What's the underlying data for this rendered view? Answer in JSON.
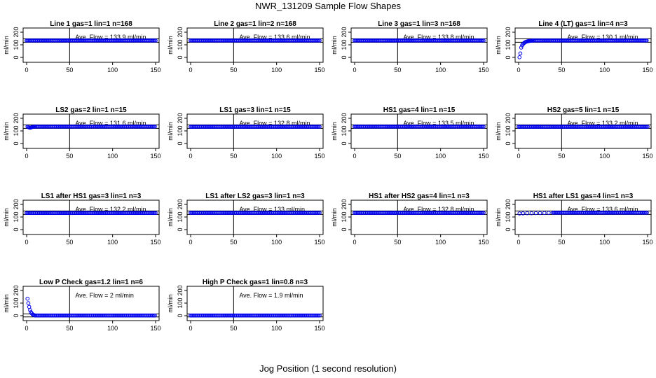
{
  "page": {
    "title": "NWR_131209  Sample Flow Shapes",
    "xlabel": "Jog Position (1 second resolution)"
  },
  "colors": {
    "points": "#0000ee",
    "axes": "#000000"
  },
  "chart_data": [
    {
      "type": "scatter",
      "title": "Line 1 gas=1 lin=1 n=168",
      "ylabel": "ml/min",
      "annotation": "Ave. Flow =  133.9  ml/min",
      "xlim": [
        0,
        150
      ],
      "ylim": [
        0,
        200
      ],
      "xticks": [
        0,
        50,
        100,
        150
      ],
      "yticks": [
        0,
        100,
        200
      ],
      "ref_lines": {
        "v": 50,
        "h": [
          120,
          148
        ]
      },
      "flow_start": 0,
      "series": [
        {
          "x": [
            0,
            150
          ],
          "y": [
            134,
            134
          ]
        }
      ]
    },
    {
      "type": "scatter",
      "title": "Line 2 gas=1 lin=2 n=168",
      "ylabel": "ml/min",
      "annotation": "Ave. Flow =  133.6  ml/min",
      "xlim": [
        0,
        150
      ],
      "ylim": [
        0,
        200
      ],
      "xticks": [
        0,
        50,
        100,
        150
      ],
      "yticks": [
        0,
        100,
        200
      ],
      "ref_lines": {
        "v": 50,
        "h": [
          120,
          148
        ]
      },
      "flow_start": 0,
      "series": [
        {
          "x": [
            0,
            150
          ],
          "y": [
            134,
            134
          ]
        }
      ]
    },
    {
      "type": "scatter",
      "title": "Line 3 gas=1 lin=3 n=168",
      "ylabel": "ml/min",
      "annotation": "Ave. Flow =  133.8  ml/min",
      "xlim": [
        0,
        150
      ],
      "ylim": [
        0,
        200
      ],
      "xticks": [
        0,
        50,
        100,
        150
      ],
      "yticks": [
        0,
        100,
        200
      ],
      "ref_lines": {
        "v": 50,
        "h": [
          120,
          148
        ]
      },
      "flow_start": 0,
      "series": [
        {
          "x": [
            0,
            150
          ],
          "y": [
            134,
            134
          ]
        }
      ]
    },
    {
      "type": "scatter",
      "title": "Line 4 (LT) gas=1 lin=4 n=3",
      "ylabel": "ml/min",
      "annotation": "Ave. Flow =  130.1  ml/min",
      "xlim": [
        0,
        150
      ],
      "ylim": [
        0,
        200
      ],
      "xticks": [
        0,
        50,
        100,
        150
      ],
      "yticks": [
        0,
        100,
        200
      ],
      "ref_lines": {
        "v": 50,
        "h": [
          120,
          148
        ]
      },
      "flow_start": 17,
      "series": [
        {
          "x": [
            1,
            2,
            3,
            4,
            5,
            6,
            7,
            8,
            9,
            10,
            11,
            12,
            13,
            14,
            15,
            16,
            17,
            150
          ],
          "y": [
            1,
            32,
            78,
            95,
            105,
            112,
            118,
            122,
            125,
            127,
            129,
            130,
            131,
            132,
            133,
            133,
            134,
            134
          ]
        }
      ]
    },
    {
      "type": "scatter",
      "title": "LS2 gas=2 lin=1 n=15",
      "ylabel": "ml/min",
      "annotation": "Ave. Flow =  131.6  ml/min",
      "xlim": [
        0,
        150
      ],
      "ylim": [
        0,
        200
      ],
      "xticks": [
        0,
        50,
        100,
        150
      ],
      "yticks": [
        0,
        100,
        200
      ],
      "ref_lines": {
        "v": 50,
        "h": [
          120,
          148
        ]
      },
      "flow_start": 10,
      "series": [
        {
          "x": [
            1,
            2,
            3,
            4,
            5,
            6,
            7,
            8,
            9,
            10,
            150
          ],
          "y": [
            134,
            130,
            127,
            125,
            127,
            130,
            132,
            133,
            134,
            134,
            134
          ]
        }
      ]
    },
    {
      "type": "scatter",
      "title": "LS1 gas=3 lin=1 n=15",
      "ylabel": "ml/min",
      "annotation": "Ave. Flow =  132.8  ml/min",
      "xlim": [
        0,
        150
      ],
      "ylim": [
        0,
        200
      ],
      "xticks": [
        0,
        50,
        100,
        150
      ],
      "yticks": [
        0,
        100,
        200
      ],
      "ref_lines": {
        "v": 50,
        "h": [
          120,
          148
        ]
      },
      "flow_start": 0,
      "series": [
        {
          "x": [
            0,
            150
          ],
          "y": [
            133,
            133
          ]
        }
      ]
    },
    {
      "type": "scatter",
      "title": "HS1 gas=4 lin=1 n=15",
      "ylabel": "ml/min",
      "annotation": "Ave. Flow =  133.5  ml/min",
      "xlim": [
        0,
        150
      ],
      "ylim": [
        0,
        200
      ],
      "xticks": [
        0,
        50,
        100,
        150
      ],
      "yticks": [
        0,
        100,
        200
      ],
      "ref_lines": {
        "v": 50,
        "h": [
          120,
          148
        ]
      },
      "flow_start": 0,
      "series": [
        {
          "x": [
            0,
            150
          ],
          "y": [
            134,
            134
          ]
        }
      ]
    },
    {
      "type": "scatter",
      "title": "HS2 gas=5 lin=1 n=15",
      "ylabel": "ml/min",
      "annotation": "Ave. Flow =  133.2  ml/min",
      "xlim": [
        0,
        150
      ],
      "ylim": [
        0,
        200
      ],
      "xticks": [
        0,
        50,
        100,
        150
      ],
      "yticks": [
        0,
        100,
        200
      ],
      "ref_lines": {
        "v": 50,
        "h": [
          120,
          148
        ]
      },
      "flow_start": 0,
      "series": [
        {
          "x": [
            0,
            150
          ],
          "y": [
            133,
            133
          ]
        }
      ]
    },
    {
      "type": "scatter",
      "title": "LS1 after HS1 gas=3 lin=1 n=3",
      "ylabel": "ml/min",
      "annotation": "Ave. Flow =  132.2  ml/min",
      "xlim": [
        0,
        150
      ],
      "ylim": [
        0,
        200
      ],
      "xticks": [
        0,
        50,
        100,
        150
      ],
      "yticks": [
        0,
        100,
        200
      ],
      "ref_lines": {
        "v": 50,
        "h": [
          120,
          148
        ]
      },
      "flow_start": 0,
      "series": [
        {
          "x": [
            0,
            150
          ],
          "y": [
            132,
            132
          ]
        }
      ]
    },
    {
      "type": "scatter",
      "title": "LS1 after LS2 gas=3 lin=1 n=3",
      "ylabel": "ml/min",
      "annotation": "Ave. Flow =  133  ml/min",
      "xlim": [
        0,
        150
      ],
      "ylim": [
        0,
        200
      ],
      "xticks": [
        0,
        50,
        100,
        150
      ],
      "yticks": [
        0,
        100,
        200
      ],
      "ref_lines": {
        "v": 50,
        "h": [
          120,
          148
        ]
      },
      "flow_start": 0,
      "series": [
        {
          "x": [
            0,
            150
          ],
          "y": [
            133,
            133
          ]
        }
      ]
    },
    {
      "type": "scatter",
      "title": "HS1 after HS2 gas=4 lin=1 n=3",
      "ylabel": "ml/min",
      "annotation": "Ave. Flow =  132.8  ml/min",
      "xlim": [
        0,
        150
      ],
      "ylim": [
        0,
        200
      ],
      "xticks": [
        0,
        50,
        100,
        150
      ],
      "yticks": [
        0,
        100,
        200
      ],
      "ref_lines": {
        "v": 50,
        "h": [
          120,
          148
        ]
      },
      "flow_start": 0,
      "series": [
        {
          "x": [
            0,
            150
          ],
          "y": [
            133,
            133
          ]
        }
      ]
    },
    {
      "type": "scatter",
      "title": "HS1 after LS1 gas=4 lin=1 n=3",
      "ylabel": "ml/min",
      "annotation": "Ave. Flow =  133.6  ml/min",
      "xlim": [
        0,
        150
      ],
      "ylim": [
        0,
        200
      ],
      "xticks": [
        0,
        50,
        100,
        150
      ],
      "yticks": [
        0,
        100,
        200
      ],
      "ref_lines": {
        "v": 50,
        "h": [
          120,
          148
        ]
      },
      "flow_start": 40,
      "series": [
        {
          "x": [
            1,
            5,
            10,
            15,
            20,
            25,
            30,
            35,
            40,
            150
          ],
          "y": [
            128,
            129,
            130,
            130,
            131,
            131,
            132,
            133,
            134,
            134
          ]
        }
      ]
    },
    {
      "type": "scatter",
      "title": "Low P Check gas=1.2 lin=1 n=6",
      "ylabel": "ml/min",
      "annotation": "Ave. Flow =  2  ml/min",
      "xlim": [
        0,
        150
      ],
      "ylim": [
        0,
        200
      ],
      "xticks": [
        0,
        50,
        100,
        150
      ],
      "yticks": [
        0,
        100,
        200
      ],
      "ref_lines": {
        "v": 50,
        "h": [
          -10,
          14
        ]
      },
      "flow_start": 10,
      "series": [
        {
          "x": [
            1,
            2,
            3,
            4,
            5,
            6,
            7,
            8,
            9,
            10,
            150
          ],
          "y": [
            135,
            100,
            70,
            45,
            28,
            18,
            10,
            6,
            4,
            2,
            2
          ]
        }
      ]
    },
    {
      "type": "scatter",
      "title": "High P Check gas=1 lin=0.8 n=3",
      "ylabel": "ml/min",
      "annotation": "Ave. Flow =  1.9  ml/min",
      "xlim": [
        0,
        150
      ],
      "ylim": [
        0,
        200
      ],
      "xticks": [
        0,
        50,
        100,
        150
      ],
      "yticks": [
        0,
        100,
        200
      ],
      "ref_lines": {
        "v": 50,
        "h": [
          -10,
          14
        ]
      },
      "flow_start": 0,
      "series": [
        {
          "x": [
            0,
            150
          ],
          "y": [
            2,
            2
          ]
        }
      ]
    }
  ]
}
